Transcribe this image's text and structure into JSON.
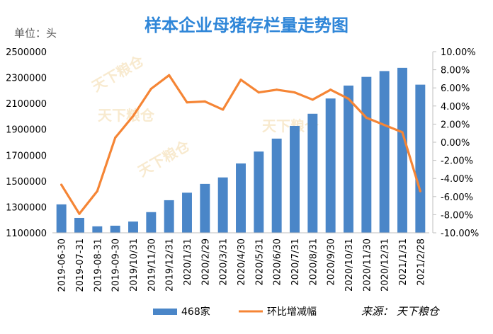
{
  "chart_data": {
    "type": "bar+line",
    "title": "样本企业母猪存栏量走势图",
    "unit_label": "单位：头",
    "categories": [
      "2019-06-30",
      "2019-07-31",
      "2019-08-31",
      "2019-09-30",
      "2019/10/31",
      "2019/11/30",
      "2019/12/31",
      "2020/1/31",
      "2020/2/29",
      "2020/3/31",
      "2020/4/30",
      "2020/5/31",
      "2020/6/30",
      "2020/7/31",
      "2020/8/31",
      "2020/9/30",
      "2020/10/31",
      "2020/11/30",
      "2020/12/31",
      "2021/1/31",
      "2021/2/28"
    ],
    "series": [
      {
        "name": "468家",
        "type": "bar",
        "axis": "left",
        "color": "#4a86c8",
        "values": [
          1320000,
          1215000,
          1150000,
          1155000,
          1187000,
          1260000,
          1352000,
          1410000,
          1478000,
          1528000,
          1636000,
          1728000,
          1828000,
          1926000,
          2020000,
          2138000,
          2238000,
          2305000,
          2350000,
          2375000,
          2245000
        ]
      },
      {
        "name": "环比增减幅",
        "type": "line",
        "axis": "right",
        "color": "#f58535",
        "values": [
          -4.7,
          -7.9,
          -5.4,
          0.5,
          2.9,
          5.9,
          7.4,
          4.4,
          4.5,
          3.6,
          6.9,
          5.5,
          5.8,
          5.5,
          4.7,
          5.8,
          4.8,
          2.7,
          1.9,
          1.1,
          -5.4
        ]
      }
    ],
    "left_axis": {
      "ylim": [
        1100000,
        2500000
      ],
      "ticks": [
        "1100000",
        "1300000",
        "1500000",
        "1700000",
        "1900000",
        "2100000",
        "2300000",
        "2500000"
      ]
    },
    "right_axis": {
      "ylim": [
        -10,
        10
      ],
      "ticks": [
        "-10.00%",
        "-8.00%",
        "-6.00%",
        "-4.00%",
        "-2.00%",
        "0.00%",
        "2.00%",
        "4.00%",
        "6.00%",
        "8.00%",
        "10.00%"
      ]
    },
    "grid": false,
    "legend_position": "bottom",
    "source": "来源：  天下粮仓",
    "watermark": "天下粮仓"
  }
}
